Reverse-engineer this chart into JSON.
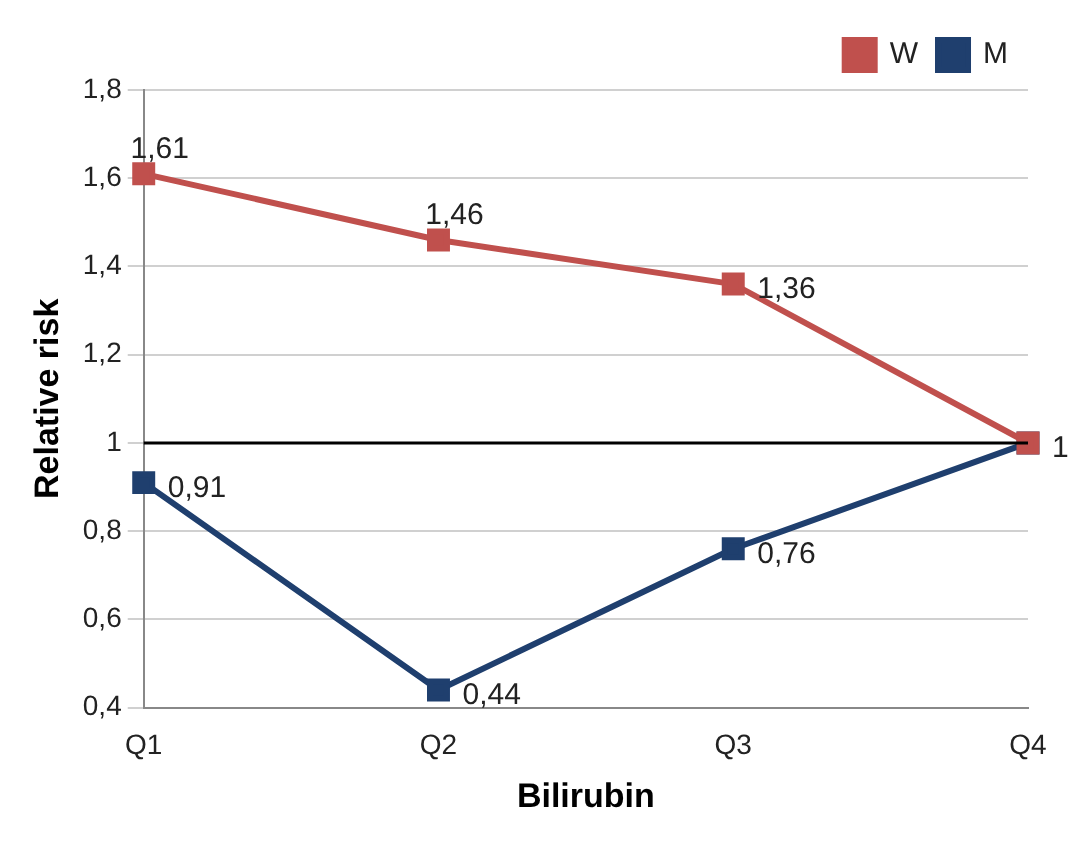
{
  "chart_data": {
    "type": "line",
    "xlabel": "Bilirubin",
    "ylabel": "Relative risk",
    "categories": [
      "Q1",
      "Q2",
      "Q3",
      "Q4"
    ],
    "series": [
      {
        "name": "M",
        "color": "#1f3f6e",
        "values": [
          0.91,
          0.44,
          0.76,
          1
        ],
        "value_labels": [
          "0,91",
          "0,44",
          "0,76",
          "1"
        ]
      },
      {
        "name": "W",
        "color": "#c0504d",
        "values": [
          1.61,
          1.46,
          1.36,
          1
        ],
        "value_labels": [
          "1,61",
          "1,46",
          "1,36",
          null
        ]
      }
    ],
    "ylim": [
      0.4,
      1.8
    ],
    "yticks": [
      {
        "value": 0.4,
        "label": "0,4"
      },
      {
        "value": 0.6,
        "label": "0,6"
      },
      {
        "value": 0.8,
        "label": "0,8"
      },
      1,
      {
        "value": 1.2,
        "label": "1,2"
      },
      {
        "value": 1.4,
        "label": "1,4"
      },
      {
        "value": 1.6,
        "label": "1,6"
      },
      {
        "value": 1.8,
        "label": "1,8"
      }
    ],
    "ref_lines": [
      {
        "axis": "y",
        "value": 1,
        "color": "#000000"
      }
    ],
    "grid": "y",
    "legend": "top right",
    "marker": "square",
    "line_style": "solid"
  }
}
